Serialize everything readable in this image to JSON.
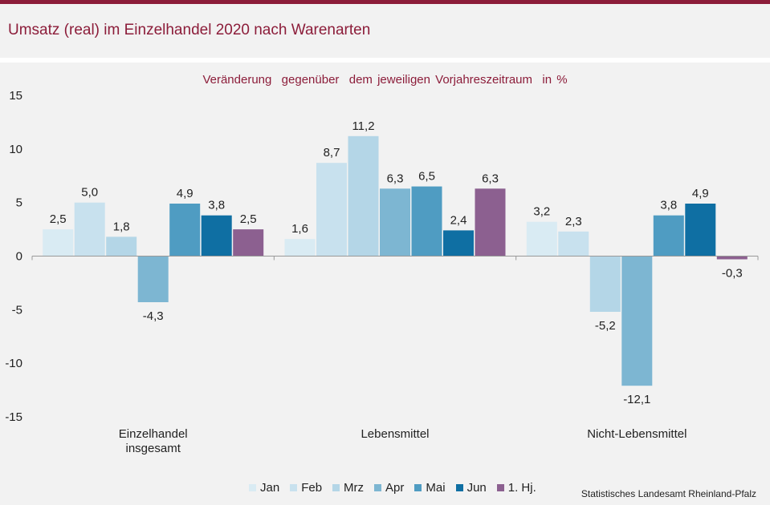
{
  "header": {
    "title": "Umsatz (real) im Einzelhandel 2020 nach Warenarten"
  },
  "subtitle": "Veränderung  gegenüber  dem jeweiligen Vorjahreszeitraum  in %",
  "source": "Statistisches Landesamt  Rheinland-Pfalz",
  "colors": {
    "accent": "#8c1d3a",
    "Jan": "#d9ebf3",
    "Feb": "#c8e1ee",
    "Mrz": "#b4d6e7",
    "Apr": "#7db6d2",
    "Mai": "#4f9cc2",
    "Jun": "#0f6fa3",
    "1. Hj.": "#8c6090"
  },
  "chart_data": {
    "type": "bar",
    "categories": [
      "Einzelhandel\ninsgesamt",
      "Lebensmittel",
      "Nicht-Lebensmittel"
    ],
    "series": [
      {
        "name": "Jan",
        "values": [
          2.5,
          1.6,
          3.2
        ]
      },
      {
        "name": "Feb",
        "values": [
          5.0,
          8.7,
          2.3
        ]
      },
      {
        "name": "Mrz",
        "values": [
          1.8,
          11.2,
          -5.2
        ]
      },
      {
        "name": "Apr",
        "values": [
          -4.3,
          6.3,
          -12.1
        ]
      },
      {
        "name": "Mai",
        "values": [
          4.9,
          6.5,
          3.8
        ]
      },
      {
        "name": "Jun",
        "values": [
          3.8,
          2.4,
          4.9
        ]
      },
      {
        "name": "1. Hj.",
        "values": [
          2.5,
          6.3,
          -0.3
        ]
      }
    ],
    "value_labels": [
      [
        "2,5",
        "1,6",
        "3,2"
      ],
      [
        "5,0",
        "8,7",
        "2,3"
      ],
      [
        "1,8",
        "11,2",
        "-5,2"
      ],
      [
        "-4,3",
        "6,3",
        "-12,1"
      ],
      [
        "4,9",
        "6,5",
        "3,8"
      ],
      [
        "3,8",
        "2,4",
        "4,9"
      ],
      [
        "2,5",
        "6,3",
        "-0,3"
      ]
    ],
    "ylim": [
      -15,
      15
    ],
    "yticks": [
      15,
      10,
      5,
      0,
      -5,
      -10,
      -15
    ],
    "ytick_labels": [
      "15",
      "10",
      "5",
      "0",
      "-5",
      "-10",
      "-15"
    ],
    "title": "Veränderung  gegenüber  dem jeweiligen Vorjahreszeitraum  in %",
    "xlabel": "",
    "ylabel": "",
    "grid": false,
    "legend_position": "bottom"
  }
}
